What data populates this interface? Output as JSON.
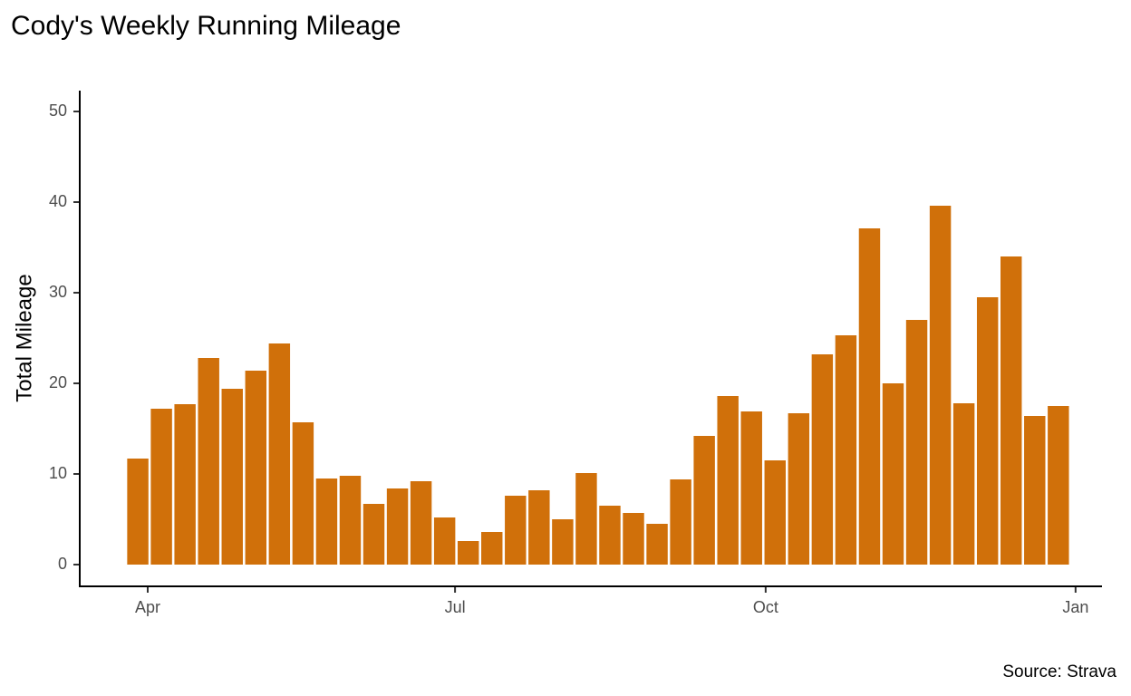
{
  "chart_data": {
    "type": "bar",
    "title": "Cody's Weekly Running Mileage",
    "y_label": "Total Mileage",
    "caption": "Source: Strava",
    "categories": [
      null,
      null,
      null,
      null,
      null,
      null,
      null,
      null,
      null,
      null,
      null,
      null,
      null,
      null,
      null,
      null,
      null,
      null,
      null,
      null,
      null,
      null,
      null,
      null,
      null,
      null,
      null,
      null,
      null,
      null,
      null,
      null,
      null,
      null,
      null,
      null,
      null,
      null,
      null,
      null
    ],
    "values": [
      11.7,
      17.2,
      17.7,
      22.8,
      19.4,
      21.4,
      24.4,
      15.7,
      9.5,
      9.8,
      6.7,
      8.4,
      9.2,
      5.2,
      2.6,
      3.6,
      7.6,
      8.2,
      5.0,
      10.1,
      6.5,
      5.7,
      4.5,
      9.4,
      14.2,
      18.6,
      16.9,
      11.5,
      16.7,
      23.2,
      25.3,
      37.1,
      20.0,
      27.0,
      39.6,
      17.8,
      29.5,
      34.0,
      16.4,
      17.5
    ],
    "color": "#d0700a",
    "xlim": [
      -2.46,
      40.85
    ],
    "xticks": [
      {
        "value": 0.42,
        "label": "Apr"
      },
      {
        "value": 13.44,
        "label": "Jul"
      },
      {
        "value": 26.6,
        "label": "Oct"
      },
      {
        "value": 39.73,
        "label": "Jan"
      }
    ],
    "ylim": [
      -2.4,
      52.3
    ],
    "yticks": [
      0,
      10,
      20,
      30,
      40,
      50
    ],
    "grid": false
  }
}
